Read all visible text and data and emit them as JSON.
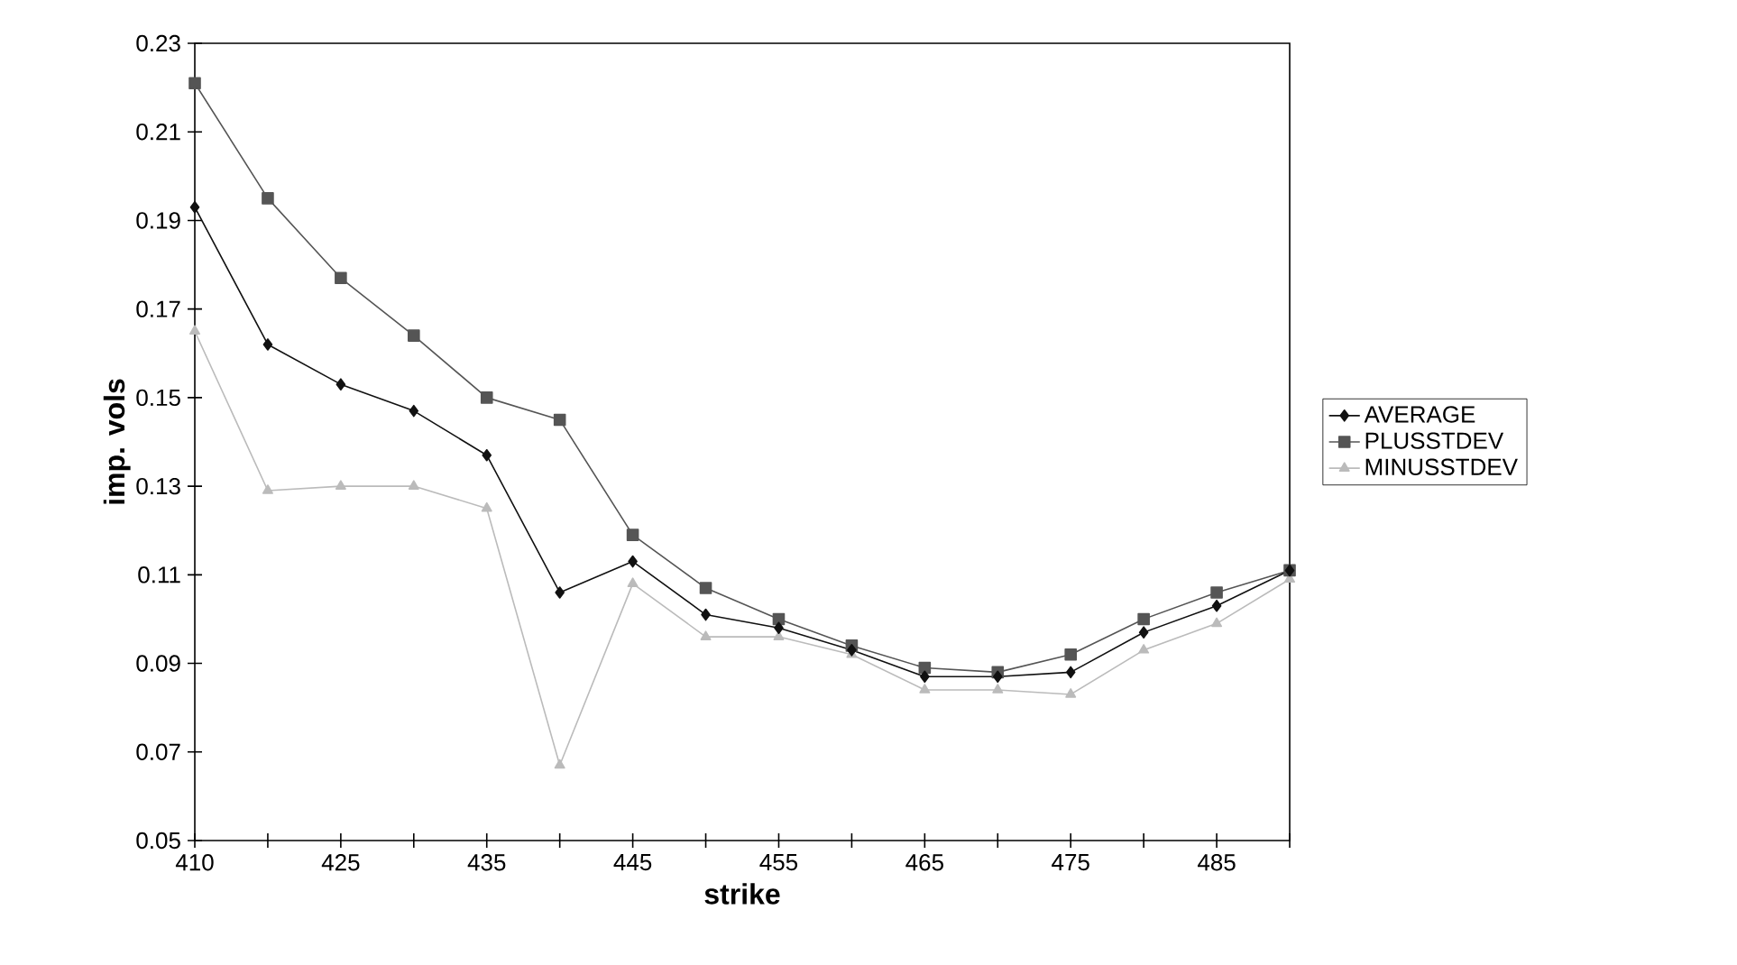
{
  "chart_data": {
    "type": "line",
    "xlabel": "strike",
    "ylabel": "imp. vols",
    "categories": [
      "410",
      null,
      "425",
      null,
      "435",
      null,
      "445",
      null,
      "455",
      null,
      "465",
      null,
      "475",
      null,
      "485",
      null
    ],
    "series": [
      {
        "name": "AVERAGE",
        "color": "#111111",
        "marker": "diamond",
        "values": [
          0.193,
          0.162,
          0.153,
          0.147,
          0.137,
          0.106,
          0.113,
          0.101,
          0.098,
          0.093,
          0.087,
          0.087,
          0.088,
          0.097,
          0.103,
          0.111
        ]
      },
      {
        "name": "PLUSSTDEV",
        "color": "#555555",
        "marker": "square",
        "values": [
          0.221,
          0.195,
          0.177,
          0.164,
          0.15,
          0.145,
          0.119,
          0.107,
          0.1,
          0.094,
          0.089,
          0.088,
          0.092,
          0.1,
          0.106,
          0.111
        ]
      },
      {
        "name": "MINUSSTDEV",
        "color": "#bbbbbb",
        "marker": "triangle",
        "values": [
          0.165,
          0.129,
          0.13,
          0.13,
          0.125,
          0.067,
          0.108,
          0.096,
          0.096,
          0.092,
          0.084,
          0.084,
          0.083,
          0.093,
          0.099,
          0.109
        ]
      }
    ],
    "ylim": [
      0.05,
      0.23
    ],
    "yticks": [
      0.05,
      0.07,
      0.09,
      0.11,
      0.13,
      0.15,
      0.17,
      0.19,
      0.21,
      0.23
    ],
    "legend": "right",
    "grid": false
  }
}
